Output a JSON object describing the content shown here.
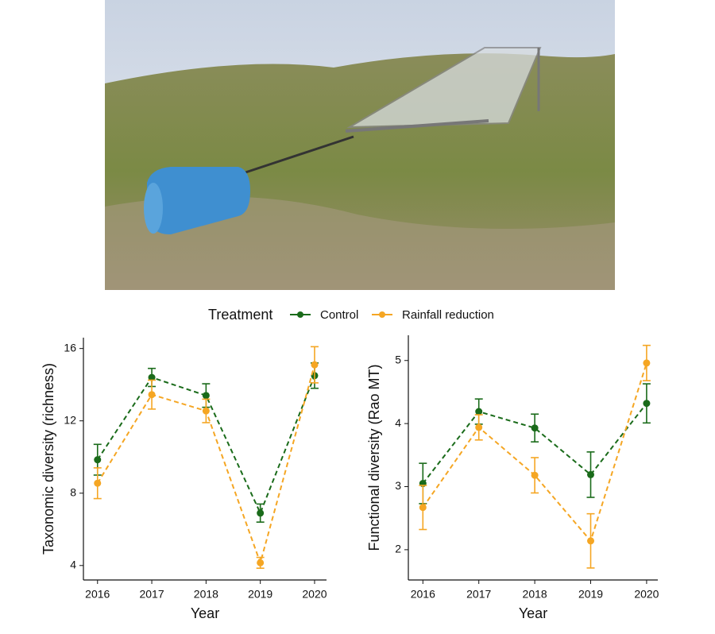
{
  "legend": {
    "title": "Treatment"
  },
  "chart_data": [
    {
      "type": "line",
      "ylabel": "Taxonomic diversity (richness)",
      "xlabel": "Year",
      "x": [
        2016,
        2017,
        2018,
        2019,
        2020
      ],
      "xlim": [
        2015.74,
        2020.22
      ],
      "xticks": [
        2016,
        2017,
        2018,
        2019,
        2020
      ],
      "ylim": [
        3.2,
        16.6
      ],
      "yticks": [
        4,
        8,
        12,
        16
      ],
      "series": [
        {
          "name": "Control",
          "color": "#1a6b1a",
          "values": [
            9.85,
            14.4,
            13.4,
            6.9,
            14.5
          ],
          "errors": [
            0.85,
            0.5,
            0.65,
            0.5,
            0.7
          ]
        },
        {
          "name": "Rainfall reduction",
          "color": "#f5a623",
          "values": [
            8.55,
            13.45,
            12.55,
            4.15,
            15.1
          ],
          "errors": [
            0.85,
            0.8,
            0.65,
            0.3,
            1.0
          ]
        }
      ]
    },
    {
      "type": "line",
      "ylabel": "Functional diversity (Rao MT)",
      "xlabel": "Year",
      "x": [
        2016,
        2017,
        2018,
        2019,
        2020
      ],
      "xlim": [
        2015.74,
        2020.2
      ],
      "xticks": [
        2016,
        2017,
        2018,
        2019,
        2020
      ],
      "ylim": [
        1.52,
        5.4
      ],
      "yticks": [
        2,
        3,
        4,
        5
      ],
      "series": [
        {
          "name": "Control",
          "color": "#1a6b1a",
          "values": [
            3.05,
            4.19,
            3.93,
            3.19,
            4.32
          ],
          "errors": [
            0.32,
            0.2,
            0.22,
            0.36,
            0.31
          ]
        },
        {
          "name": "Rainfall reduction",
          "color": "#f5a623",
          "values": [
            2.67,
            3.94,
            3.18,
            2.14,
            4.96
          ],
          "errors": [
            0.35,
            0.2,
            0.28,
            0.43,
            0.28
          ]
        }
      ]
    }
  ]
}
